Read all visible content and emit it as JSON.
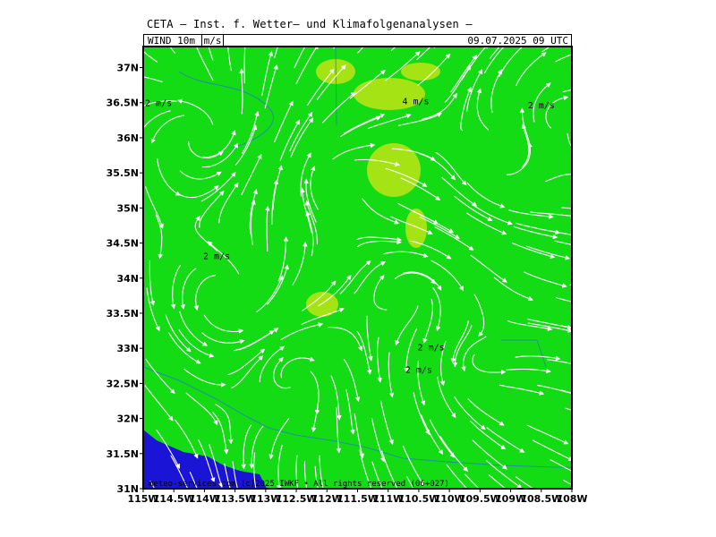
{
  "header": {
    "title": "CETA — Inst. f. Wetter— und Klimafolgenanalysen —",
    "param_prefix": "WIND 10m",
    "unit": "m/s",
    "datetime": "09.07.2025 09 UTC"
  },
  "map": {
    "lon_range": [
      -115,
      -108
    ],
    "lat_range": [
      31,
      37.3
    ],
    "lat_ticks": [
      {
        "value": 31,
        "label": "31N"
      },
      {
        "value": 31.5,
        "label": "31.5N"
      },
      {
        "value": 32,
        "label": "32N"
      },
      {
        "value": 32.5,
        "label": "32.5N"
      },
      {
        "value": 33,
        "label": "33N"
      },
      {
        "value": 33.5,
        "label": "33.5N"
      },
      {
        "value": 34,
        "label": "34N"
      },
      {
        "value": 34.5,
        "label": "34.5N"
      },
      {
        "value": 35,
        "label": "35N"
      },
      {
        "value": 35.5,
        "label": "35.5N"
      },
      {
        "value": 36,
        "label": "36N"
      },
      {
        "value": 36.5,
        "label": "36.5N"
      },
      {
        "value": 37,
        "label": "37N"
      }
    ],
    "lon_ticks": [
      {
        "value": -115,
        "label": "115W"
      },
      {
        "value": -114.5,
        "label": "114.5W"
      },
      {
        "value": -114,
        "label": "114W"
      },
      {
        "value": -113.5,
        "label": "113.5W"
      },
      {
        "value": -113,
        "label": "113W"
      },
      {
        "value": -112.5,
        "label": "112.5W"
      },
      {
        "value": -112,
        "label": "112W"
      },
      {
        "value": -111.5,
        "label": "111.5W"
      },
      {
        "value": -111,
        "label": "111W"
      },
      {
        "value": -110.5,
        "label": "110.5W"
      },
      {
        "value": -110,
        "label": "110W"
      },
      {
        "value": -109.5,
        "label": "109.5W"
      },
      {
        "value": -109,
        "label": "109W"
      },
      {
        "value": -108.5,
        "label": "108.5W"
      },
      {
        "value": -108,
        "label": "108W"
      }
    ],
    "speed_labels": [
      {
        "text": "2 m/s",
        "lon": -114.75,
        "lat": 36.45
      },
      {
        "text": "4 m/s",
        "lon": -110.55,
        "lat": 36.48
      },
      {
        "text": "2 m/s",
        "lon": -108.5,
        "lat": 36.42
      },
      {
        "text": "2 m/s",
        "lon": -113.8,
        "lat": 34.27
      },
      {
        "text": "2 m/s",
        "lon": -110.3,
        "lat": 32.97
      },
      {
        "text": "2 m/s",
        "lon": -110.5,
        "lat": 32.65
      }
    ],
    "copyright": "meteo-services.com (c)2025 IWKF • All rights reserved (06+027)",
    "colors": {
      "background_wind": "#14dc14",
      "low_wind": "#1a14d6",
      "high_wind": "#d6e614",
      "streamlines": "#ffffff",
      "borders": "#2a6fd6"
    }
  }
}
